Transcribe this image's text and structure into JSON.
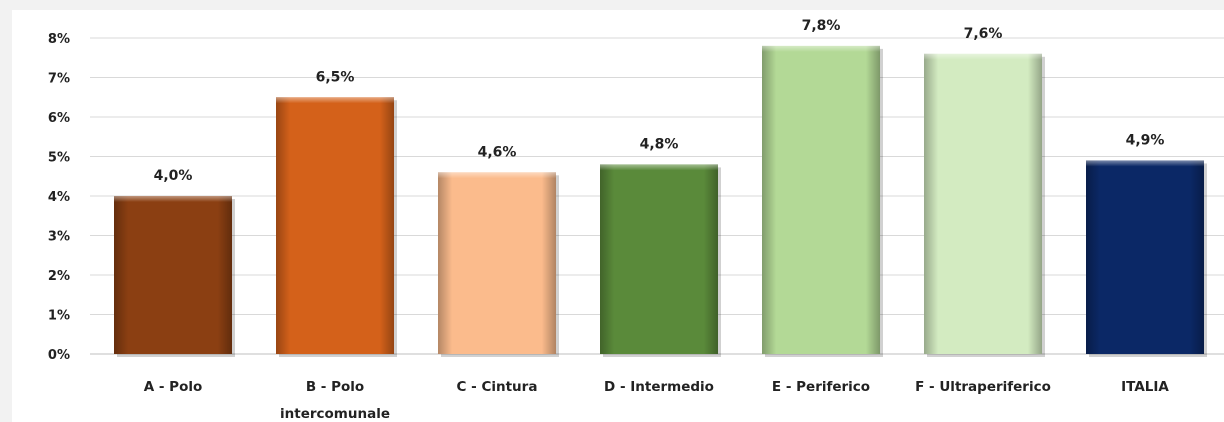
{
  "chart_data": {
    "type": "bar",
    "categories": [
      [
        "A - Polo"
      ],
      [
        "B - Polo",
        "intercomunale"
      ],
      [
        "C - Cintura"
      ],
      [
        "D - Intermedio"
      ],
      [
        "E - Periferico"
      ],
      [
        "F - Ultraperiferico"
      ],
      [
        "ITALIA"
      ]
    ],
    "values": [
      4.0,
      6.5,
      4.6,
      4.8,
      7.8,
      7.6,
      4.9
    ],
    "value_labels": [
      "4,0%",
      "6,5%",
      "4,6%",
      "4,8%",
      "7,8%",
      "7,6%",
      "4,9%"
    ],
    "bar_colors": [
      "#8b3f12",
      "#d4611a",
      "#fbbb8c",
      "#5a8a3a",
      "#b3d996",
      "#d3ebc1",
      "#0b2866"
    ],
    "ylim": [
      0,
      8
    ],
    "yticks": [
      0,
      1,
      2,
      3,
      4,
      5,
      6,
      7,
      8
    ],
    "ytick_labels": [
      "0%",
      "1%",
      "2%",
      "3%",
      "4%",
      "5%",
      "6%",
      "7%",
      "8%"
    ],
    "grid": true,
    "legend": "none"
  }
}
